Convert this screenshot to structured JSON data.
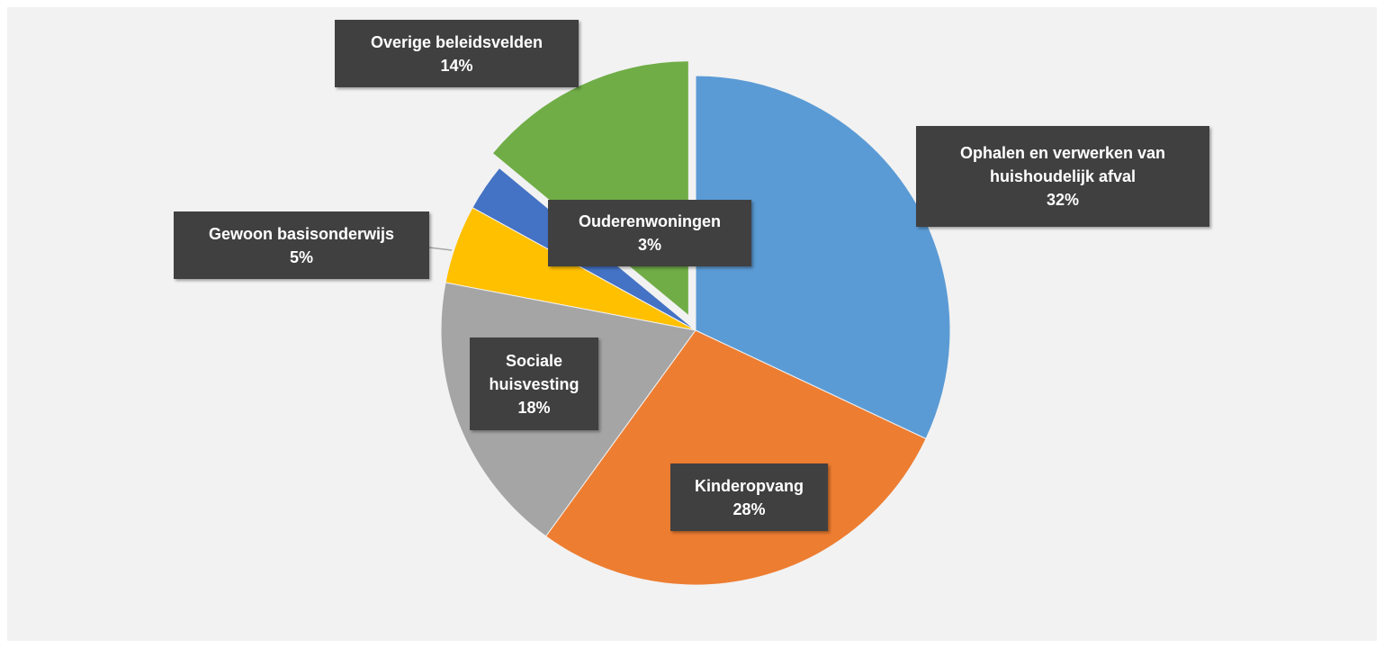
{
  "chart_data": {
    "type": "pie",
    "categories": [
      "Ophalen en verwerken van huishoudelijk afval",
      "Kinderopvang",
      "Sociale huisvesting",
      "Gewoon basisonderwijs",
      "Ouderenwoningen",
      "Overige beleidsvelden"
    ],
    "values": [
      32,
      28,
      18,
      5,
      3,
      14
    ],
    "value_labels": [
      "32%",
      "28%",
      "18%",
      "5%",
      "3%",
      "14%"
    ],
    "colors": [
      "#5b9bd5",
      "#ed7d31",
      "#a5a5a5",
      "#ffc000",
      "#4472c4",
      "#70ad47"
    ]
  }
}
